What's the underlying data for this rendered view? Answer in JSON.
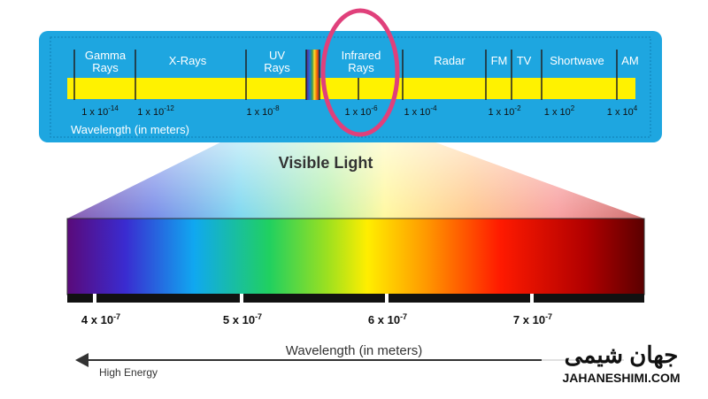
{
  "spectrum": {
    "bands": [
      {
        "label": [
          "Gamma",
          "Rays"
        ]
      },
      {
        "label": [
          "X-Rays"
        ]
      },
      {
        "label": [
          "UV",
          "Rays"
        ]
      },
      {
        "label": [
          "Infrared",
          "Rays"
        ]
      },
      {
        "label": [
          "Radar"
        ]
      },
      {
        "label": [
          "FM"
        ]
      },
      {
        "label": [
          "TV"
        ]
      },
      {
        "label": [
          "Shortwave"
        ]
      },
      {
        "label": [
          "AM"
        ]
      }
    ],
    "wavelengths": [
      {
        "base": "1 x 10",
        "exp": "-14"
      },
      {
        "base": "1 x 10",
        "exp": "-12"
      },
      {
        "base": "1 x 10",
        "exp": "-8"
      },
      {
        "base": "1 x 10",
        "exp": "-6"
      },
      {
        "base": "1 x 10",
        "exp": "-4"
      },
      {
        "base": "1 x 10",
        "exp": "-2"
      },
      {
        "base": "1 x 10",
        "exp": "2"
      },
      {
        "base": "1 x 10",
        "exp": "4"
      }
    ],
    "axis_label": "Wavelength (in meters)"
  },
  "visible": {
    "title": "Visible Light",
    "ticks": [
      {
        "base": "4 x 10",
        "exp": "-7"
      },
      {
        "base": "5 x 10",
        "exp": "-7"
      },
      {
        "base": "6 x 10",
        "exp": "-7"
      },
      {
        "base": "7 x 10",
        "exp": "-7"
      }
    ],
    "axis_label": "Wavelength (in meters)",
    "arrow_label": "High Energy"
  },
  "watermark": {
    "logo": "جهان شیمی",
    "site": "JAHANESHIMI.COM"
  }
}
